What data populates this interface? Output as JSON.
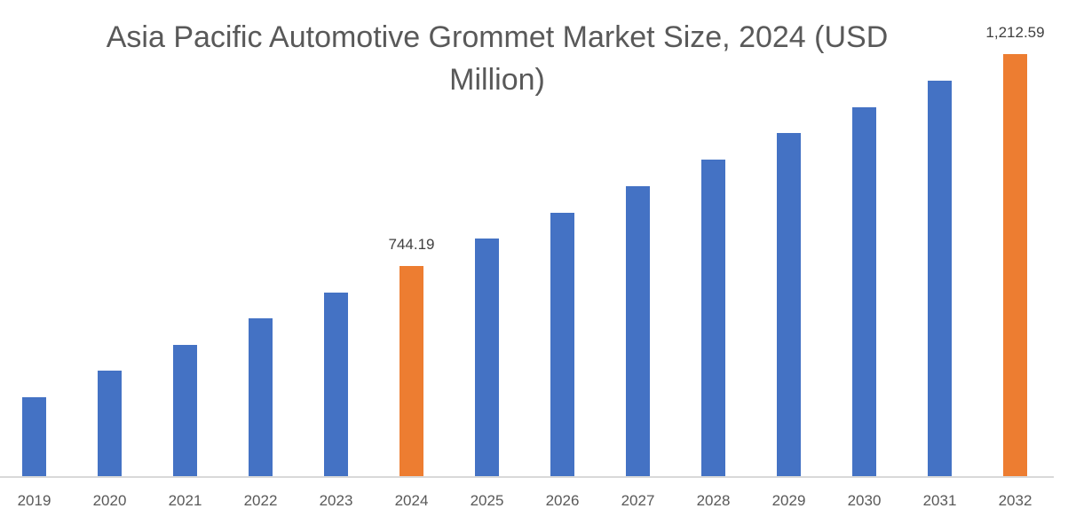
{
  "title": "Asia Pacific Automotive Grommet Market Size, 2024 (USD Million)",
  "colors": {
    "default": "#4472C4",
    "highlight": "#ED7D31",
    "axis": "#D9D9D9",
    "text": "#595959"
  },
  "chart_data": {
    "type": "bar",
    "title": "Asia Pacific Automotive Grommet Market Size, 2024 (USD Million)",
    "xlabel": "",
    "ylabel": "USD Million",
    "categories": [
      "2019",
      "2020",
      "2021",
      "2022",
      "2023",
      "2024",
      "2025",
      "2026",
      "2027",
      "2028",
      "2029",
      "2030",
      "2031",
      "2032"
    ],
    "values": [
      454,
      513,
      570,
      629,
      686,
      744.19,
      805,
      862,
      921,
      979,
      1038,
      1095,
      1154,
      1212.59
    ],
    "highlighted": [
      "2024",
      "2032"
    ],
    "data_labels": {
      "2024": "744.19",
      "2032": "1,212.59"
    },
    "grid": false,
    "legend": "none",
    "y_axis_visible": false
  }
}
